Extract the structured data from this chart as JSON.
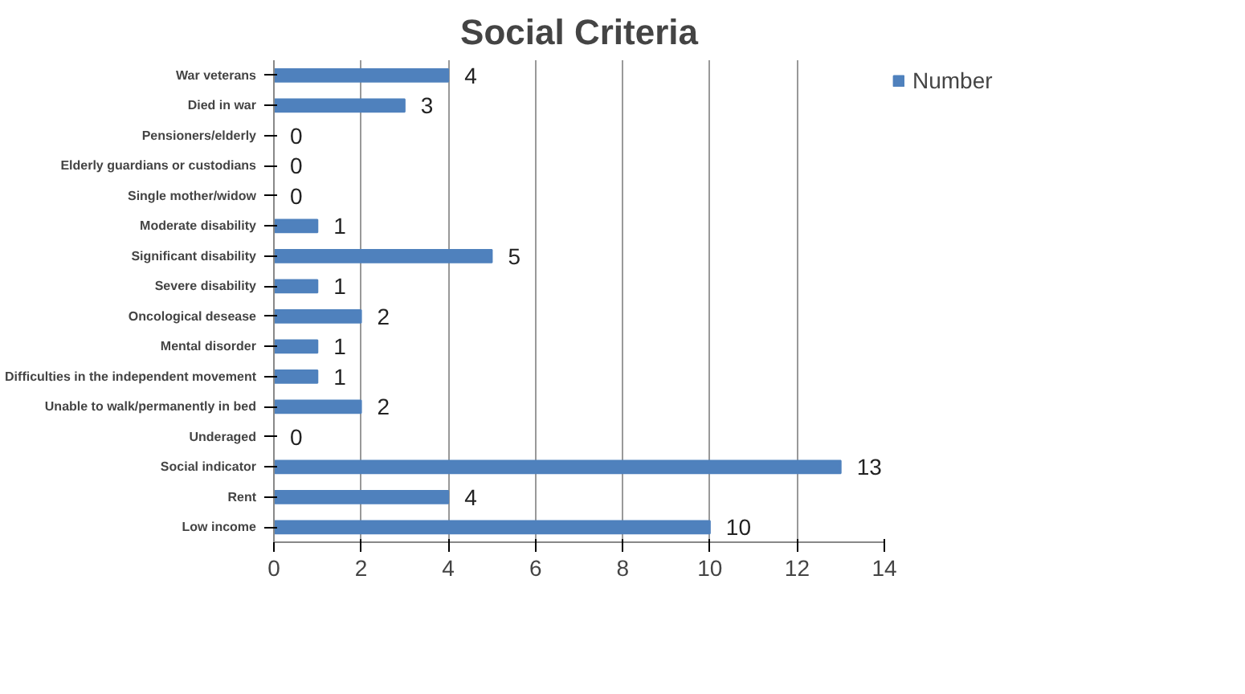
{
  "chart_data": {
    "type": "bar",
    "title": "Social Criteria",
    "orientation": "horizontal",
    "categories": [
      "War veterans",
      "Died in war",
      "Pensioners/elderly",
      "Elderly guardians or custodians",
      "Single mother/widow",
      "Moderate disability",
      "Significant disability",
      "Severe disability",
      "Oncological desease",
      "Mental disorder",
      "Difficulties in the independent movement",
      "Unable to walk/permanently in bed",
      "Underaged",
      "Social indicator",
      "Rent",
      "Low income"
    ],
    "series": [
      {
        "name": "Number",
        "color": "#4f81bd",
        "values": [
          4,
          3,
          0,
          0,
          0,
          1,
          5,
          1,
          2,
          1,
          1,
          2,
          0,
          13,
          4,
          10
        ]
      }
    ],
    "xlim": [
      0,
      14
    ],
    "xticks": [
      0,
      2,
      4,
      6,
      8,
      10,
      12,
      14
    ],
    "grid": "x",
    "legend": "right",
    "data_labels": true
  }
}
